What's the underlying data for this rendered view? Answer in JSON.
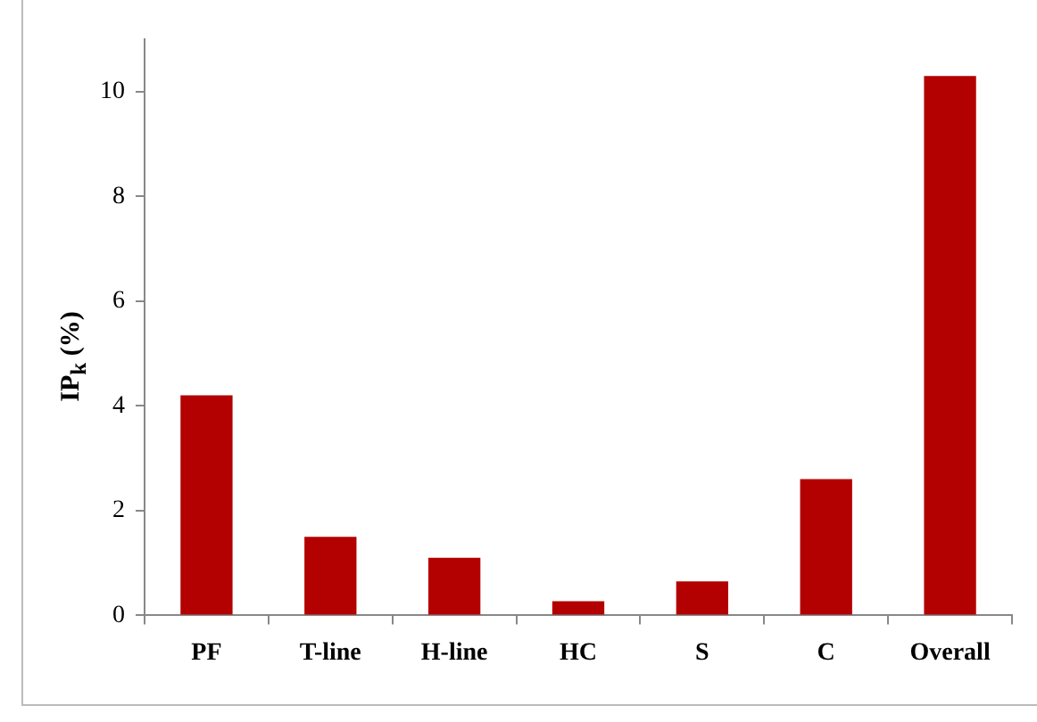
{
  "chart_data": {
    "type": "bar",
    "ylabel": "IP$_{k}$ (%)",
    "categories": [
      "PF",
      "T-line",
      "H-line",
      "HC",
      "S",
      "C",
      "Overall"
    ],
    "values": [
      4.2,
      1.5,
      1.1,
      0.27,
      0.65,
      2.6,
      10.3
    ],
    "color": "#b30000",
    "ylim": [
      0,
      11
    ],
    "yticks": [
      0,
      2,
      4,
      6,
      8,
      10
    ]
  }
}
